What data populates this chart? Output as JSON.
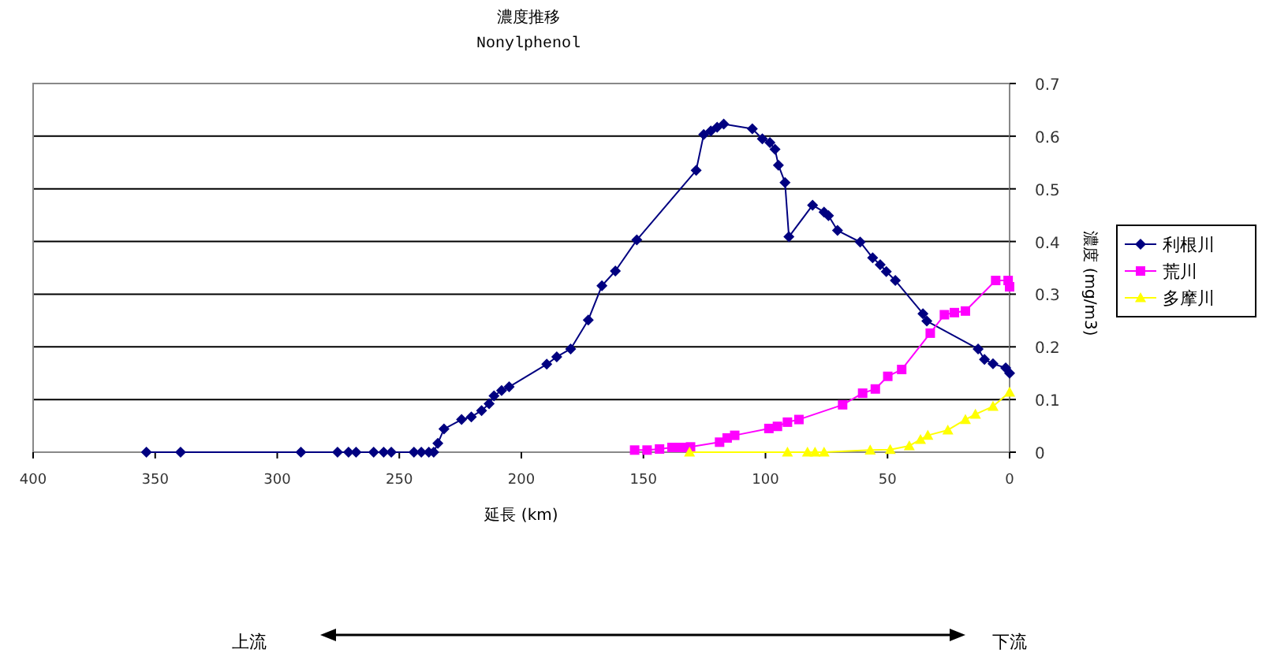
{
  "chart_data": {
    "type": "line",
    "title": "濃度推移",
    "subtitle": "Nonylphenol",
    "xlabel": "延長 (km)",
    "ylabel": "濃度 (mg/m3)",
    "xlim": [
      400,
      0
    ],
    "xticks": [
      400,
      350,
      300,
      250,
      200,
      150,
      100,
      50,
      0
    ],
    "ylim": [
      0,
      0.7
    ],
    "yticks": [
      0,
      0.1,
      0.2,
      0.3,
      0.4,
      0.5,
      0.6,
      0.7
    ],
    "grid": "y",
    "legend": "right",
    "line_style": "solid",
    "series": [
      {
        "name": "利根川",
        "color": "#000080",
        "marker": "diamond",
        "x": [
          353.6,
          339.6,
          290.3,
          275.3,
          270.8,
          267.7,
          260.5,
          256.4,
          253.3,
          244,
          241,
          237.9,
          235.9,
          234.2,
          231.7,
          224.5,
          220.5,
          216.3,
          213.2,
          211.2,
          208.1,
          205,
          189.6,
          185.5,
          179.8,
          172.6,
          167,
          161.5,
          152.7,
          128.4,
          125.3,
          122.4,
          119.8,
          117.1,
          105.4,
          101.3,
          98.2,
          96.1,
          94.7,
          92,
          90.4,
          80.7,
          76,
          74.2,
          70.5,
          61.2,
          56.1,
          53,
          50.5,
          46.8,
          35.5,
          33.9,
          12.9,
          10.3,
          6.8,
          1.6,
          0
        ],
        "values": [
          0,
          0,
          0,
          0,
          0,
          0,
          0,
          0,
          0,
          0,
          0,
          0,
          0,
          0.017,
          0.044,
          0.062,
          0.067,
          0.079,
          0.092,
          0.107,
          0.117,
          0.124,
          0.167,
          0.181,
          0.196,
          0.251,
          0.316,
          0.344,
          0.403,
          0.535,
          0.603,
          0.61,
          0.617,
          0.623,
          0.614,
          0.595,
          0.588,
          0.575,
          0.545,
          0.512,
          0.409,
          0.469,
          0.456,
          0.449,
          0.421,
          0.399,
          0.369,
          0.356,
          0.343,
          0.326,
          0.263,
          0.249,
          0.196,
          0.176,
          0.168,
          0.16,
          0.15
        ]
      },
      {
        "name": "荒川",
        "color": "#ff00ff",
        "marker": "square",
        "x": [
          153.6,
          148.5,
          143.4,
          138.3,
          135.2,
          132.1,
          130.7,
          118.8,
          115.7,
          112.6,
          98.6,
          95.1,
          91,
          86.3,
          68.4,
          60.2,
          55,
          49.9,
          44.2,
          32.5,
          26.7,
          22.6,
          18.1,
          5.7,
          0.6,
          0
        ],
        "values": [
          0.004,
          0.004,
          0.006,
          0.009,
          0.009,
          0.009,
          0.01,
          0.019,
          0.027,
          0.032,
          0.045,
          0.049,
          0.057,
          0.062,
          0.09,
          0.112,
          0.12,
          0.144,
          0.157,
          0.226,
          0.261,
          0.265,
          0.268,
          0.326,
          0.326,
          0.314
        ]
      },
      {
        "name": "多摩川",
        "color": "#ffff00",
        "marker": "triangle",
        "x": [
          131.1,
          91,
          82.8,
          79.7,
          76,
          57.1,
          48.9,
          41.1,
          36.5,
          33.5,
          25.3,
          18.1,
          14,
          6.8,
          0
        ],
        "values": [
          0,
          0,
          0,
          0,
          0,
          0.004,
          0.005,
          0.012,
          0.024,
          0.032,
          0.042,
          0.062,
          0.072,
          0.087,
          0.114
        ]
      }
    ],
    "annotations": [
      "上流",
      "下流"
    ]
  }
}
